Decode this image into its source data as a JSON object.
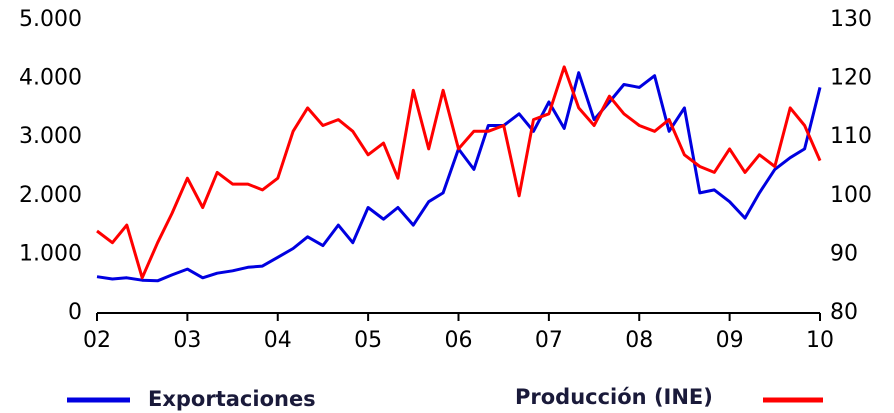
{
  "chart_data": {
    "type": "line",
    "x": [
      2002.0,
      2002.17,
      2002.33,
      2002.5,
      2002.67,
      2002.83,
      2003.0,
      2003.17,
      2003.33,
      2003.5,
      2003.67,
      2003.83,
      2004.0,
      2004.17,
      2004.33,
      2004.5,
      2004.67,
      2004.83,
      2005.0,
      2005.17,
      2005.33,
      2005.5,
      2005.67,
      2005.83,
      2006.0,
      2006.17,
      2006.33,
      2006.5,
      2006.67,
      2006.83,
      2007.0,
      2007.17,
      2007.33,
      2007.5,
      2007.67,
      2007.83,
      2008.0,
      2008.17,
      2008.33,
      2008.5,
      2008.67,
      2008.83,
      2009.0,
      2009.17,
      2009.33,
      2009.5,
      2009.67,
      2009.83,
      2010.0
    ],
    "series": [
      {
        "name": "Exportaciones",
        "color": "#0000e0",
        "values": [
          620,
          580,
          600,
          560,
          550,
          650,
          750,
          600,
          680,
          720,
          780,
          800,
          950,
          1100,
          1300,
          1150,
          1500,
          1200,
          1800,
          1600,
          1800,
          1500,
          1900,
          2050,
          2800,
          2450,
          3200,
          3200,
          3400,
          3100,
          3600,
          3150,
          4100,
          3300,
          3600,
          3900,
          3850,
          4050,
          3100,
          3500,
          2050,
          2100,
          1900,
          1620,
          2050,
          2450,
          2650,
          2800,
          3850
        ]
      },
      {
        "name": "Producción (INE)",
        "color": "#ff0000",
        "axis": "y2",
        "values": [
          94,
          92,
          95,
          86,
          92,
          97,
          103,
          98,
          104,
          102,
          102,
          101,
          103,
          111,
          115,
          112,
          113,
          111,
          107,
          109,
          103,
          118,
          108,
          118,
          108,
          111,
          111,
          112,
          100,
          113,
          114,
          122,
          115,
          112,
          117,
          114,
          112,
          111,
          113,
          107,
          105,
          104,
          108,
          104,
          107,
          105,
          115,
          112,
          106
        ]
      }
    ],
    "xlim": [
      2002,
      2010
    ],
    "xticks": [
      {
        "value": 2002,
        "label": "02"
      },
      {
        "value": 2003,
        "label": "03"
      },
      {
        "value": 2004,
        "label": "04"
      },
      {
        "value": 2005,
        "label": "05"
      },
      {
        "value": 2006,
        "label": "06"
      },
      {
        "value": 2007,
        "label": "07"
      },
      {
        "value": 2008,
        "label": "08"
      },
      {
        "value": 2009,
        "label": "09"
      },
      {
        "value": 2010,
        "label": "10"
      }
    ],
    "ylim": [
      0,
      5000
    ],
    "yticks": [
      0,
      {
        "value": 1000,
        "label": "1.000"
      },
      {
        "value": 2000,
        "label": "2.000"
      },
      {
        "value": 3000,
        "label": "3.000"
      },
      {
        "value": 4000,
        "label": "4.000"
      },
      {
        "value": 5000,
        "label": "5.000"
      }
    ],
    "y2lim": [
      80,
      130
    ],
    "y2ticks": [
      80,
      90,
      100,
      110,
      120,
      130
    ]
  }
}
